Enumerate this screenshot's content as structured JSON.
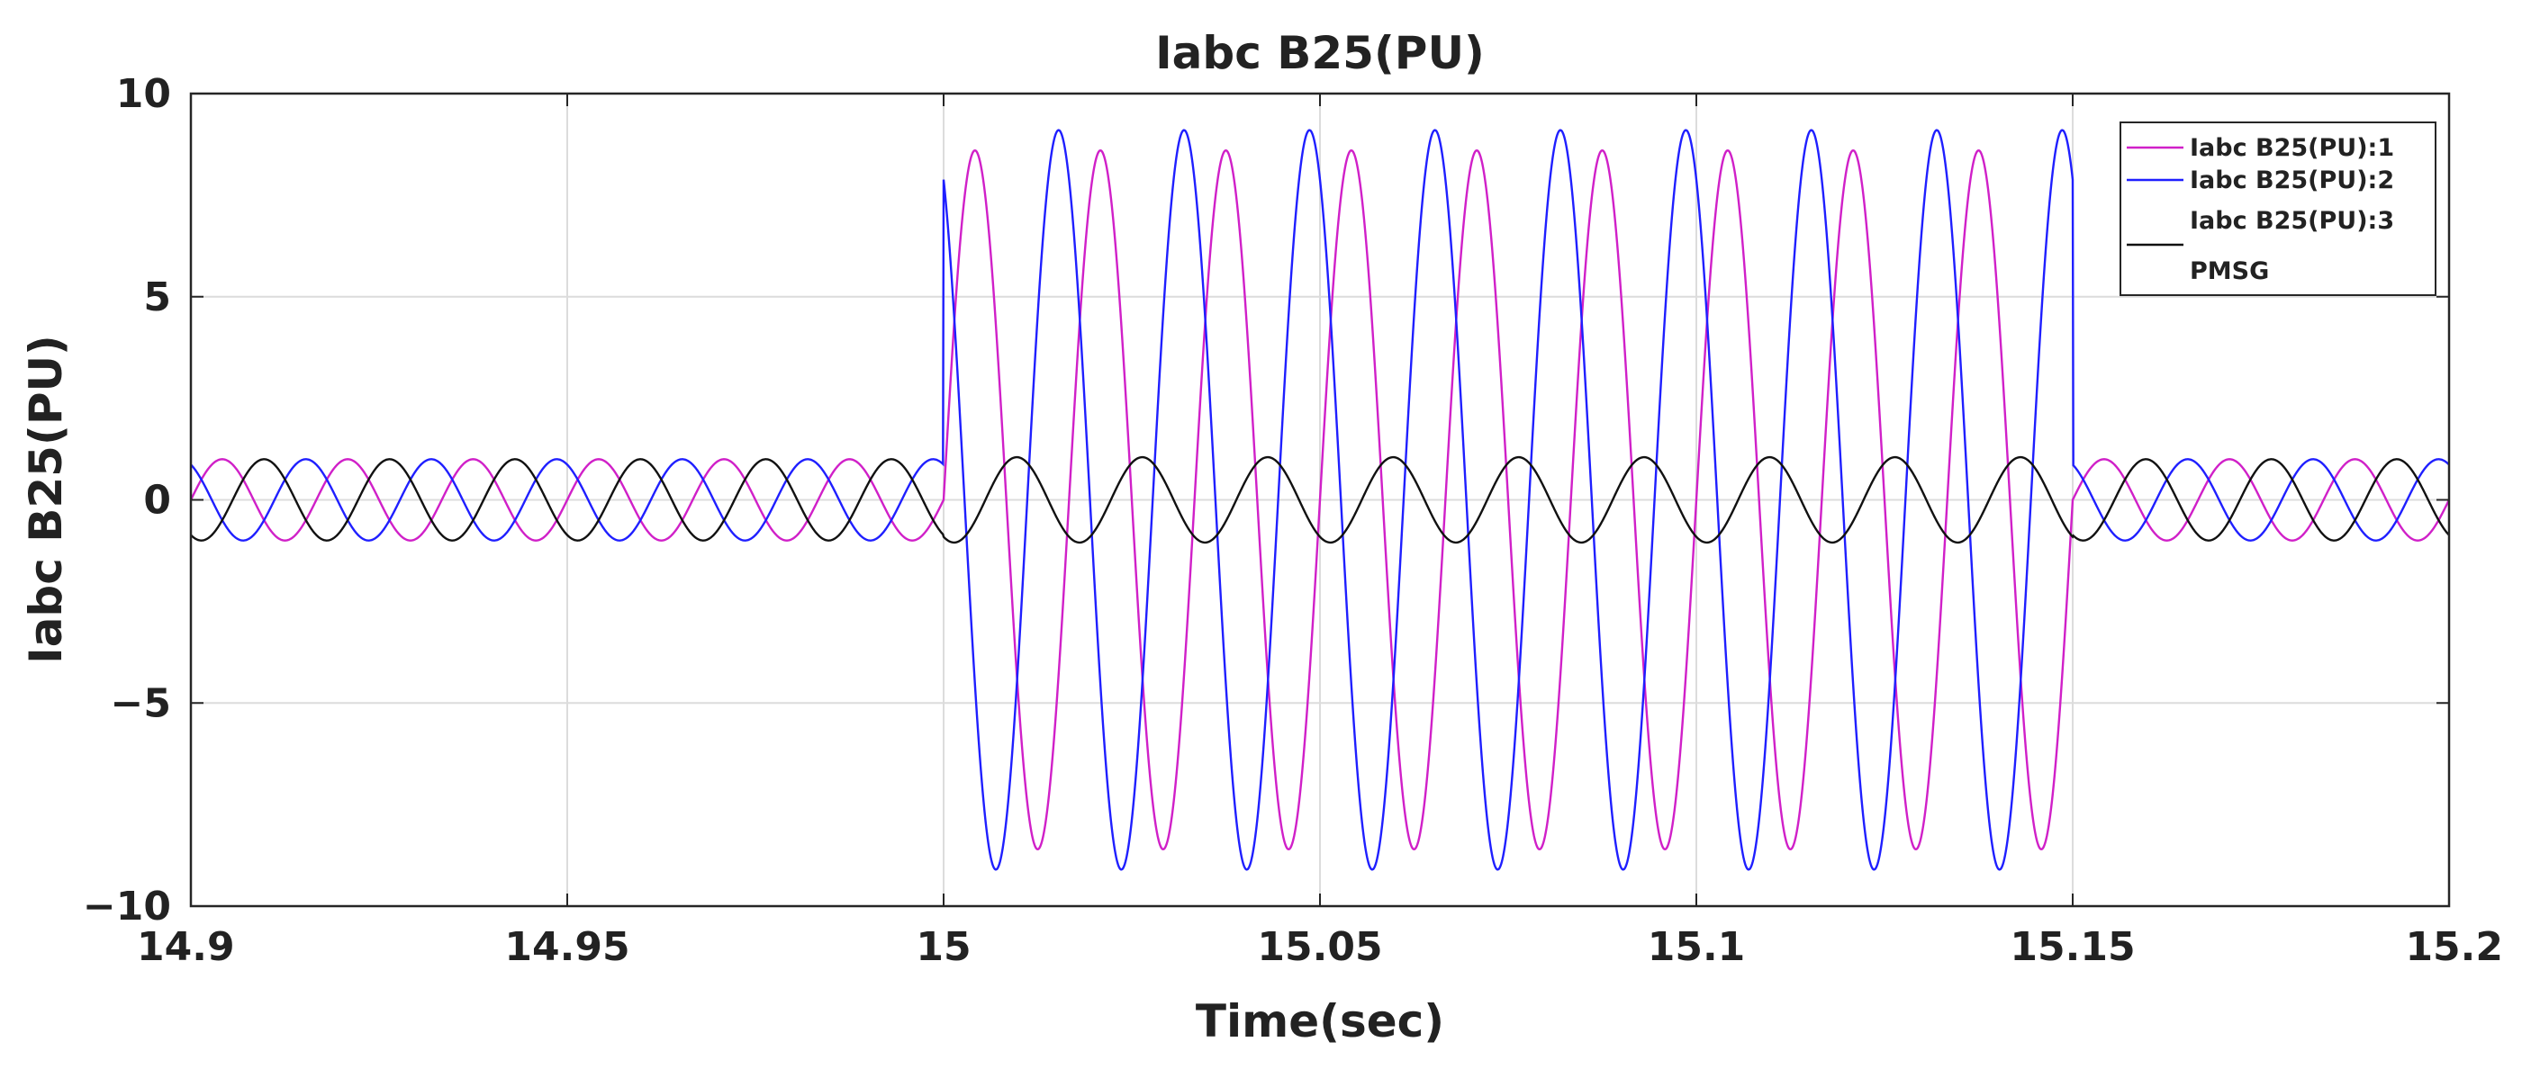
{
  "chart_data": {
    "type": "line",
    "title": "Iabc B25(PU)",
    "xlabel": "Time(sec)",
    "ylabel": "Iabc B25(PU)",
    "xlim": [
      14.9,
      15.2
    ],
    "ylim": [
      -10,
      10
    ],
    "x_ticks": [
      14.9,
      14.95,
      15.0,
      15.05,
      15.1,
      15.15,
      15.2
    ],
    "x_tick_labels": [
      "14.9",
      "14.95",
      "15",
      "15.05",
      "15.1",
      "15.15",
      "15.2"
    ],
    "y_ticks": [
      -10,
      -5,
      0,
      5,
      10
    ],
    "y_tick_labels": [
      "−10",
      "−5",
      "0",
      "5",
      "10"
    ],
    "grid": true,
    "legend_position": "top-right",
    "frequency_hz": 60,
    "fault_interval": [
      15.0,
      15.15
    ],
    "series": [
      {
        "name": "Iabc B25(PU):1",
        "color": "#d020c8",
        "pre_fault_amplitude": 1.0,
        "fault_amplitude": 8.6,
        "post_fault_amplitude": 1.0,
        "phase_deg": 0
      },
      {
        "name": "Iabc B25(PU):2",
        "color": "#1f1fff",
        "pre_fault_amplitude": 1.0,
        "fault_amplitude": 9.1,
        "post_fault_amplitude": 1.0,
        "phase_deg": 120
      },
      {
        "name": "Iabc B25(PU):3",
        "color": "#111111",
        "pre_fault_amplitude": 1.0,
        "fault_amplitude": 1.05,
        "post_fault_amplitude": 1.0,
        "phase_deg": 240
      }
    ],
    "legend_extra": "PMSG"
  }
}
